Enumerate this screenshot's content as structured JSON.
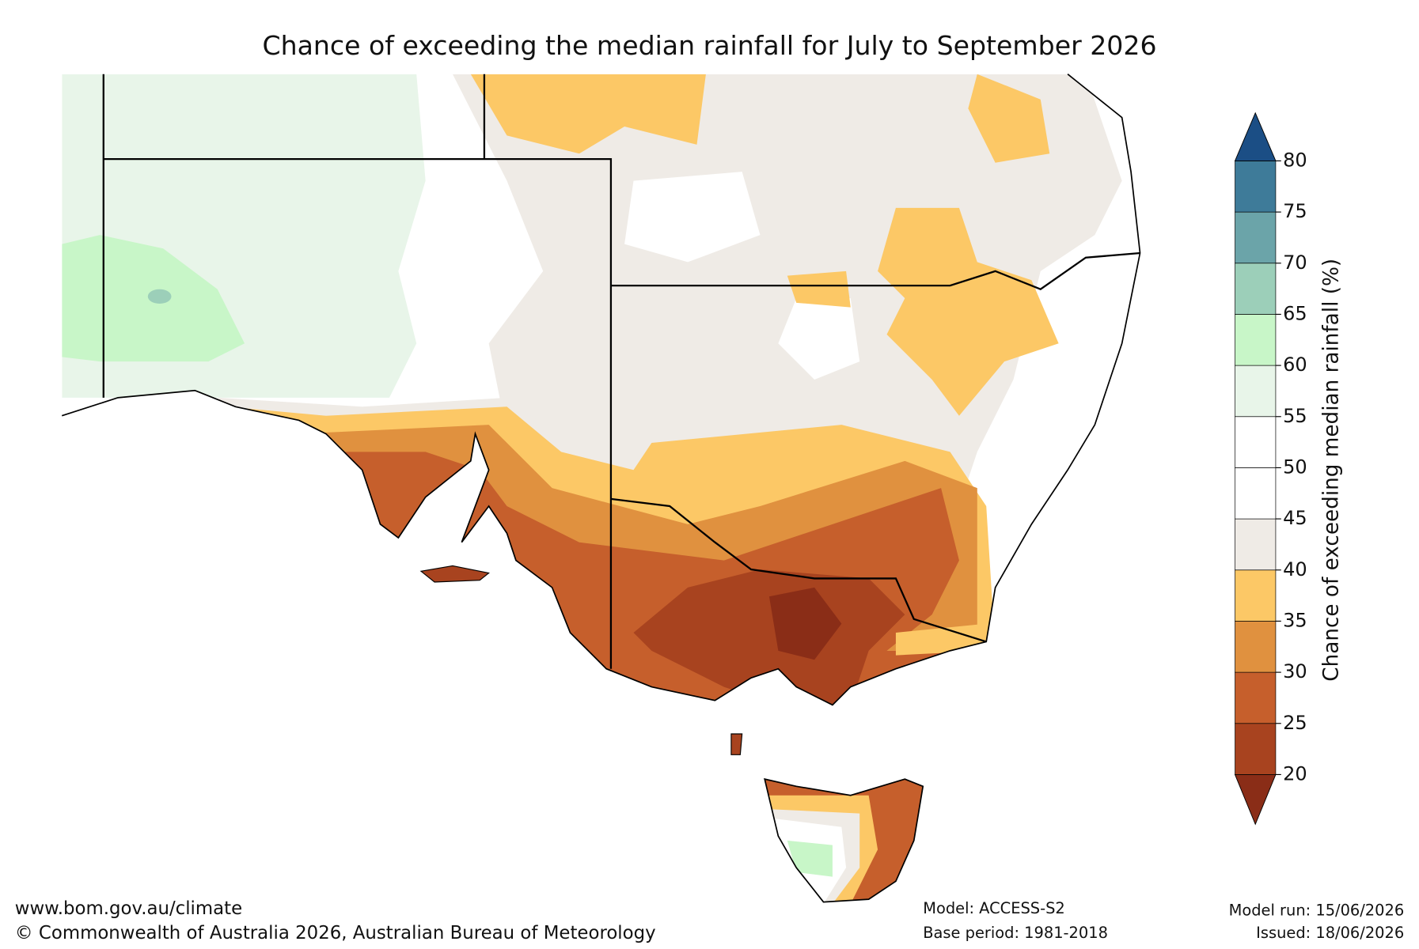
{
  "title": "Chance of exceeding the median rainfall for July to September 2026",
  "colorbar": {
    "label": "Chance of exceeding median rainfall (%)",
    "ticks": [
      20,
      25,
      30,
      35,
      40,
      45,
      50,
      55,
      60,
      65,
      70,
      75,
      80
    ],
    "colors": [
      "#a8431f",
      "#c65f2c",
      "#e0913f",
      "#fcc866",
      "#efebe6",
      "#ffffff",
      "#ffffff",
      "#e8f5e9",
      "#c8f6c8",
      "#9ccfb9",
      "#6ba4a9",
      "#3e7b99"
    ],
    "under_color": "#8a2d17",
    "over_color": "#1b4e85"
  },
  "footer": {
    "url": "www.bom.gov.au/climate",
    "copyright": "© Commonwealth of Australia 2026, Australian Bureau of Meteorology",
    "model": "Model: ACCESS-S2",
    "base_period": "Base period: 1981-2018",
    "model_run": "Model run: 15/06/2026",
    "issued": "Issued: 18/06/2026"
  }
}
